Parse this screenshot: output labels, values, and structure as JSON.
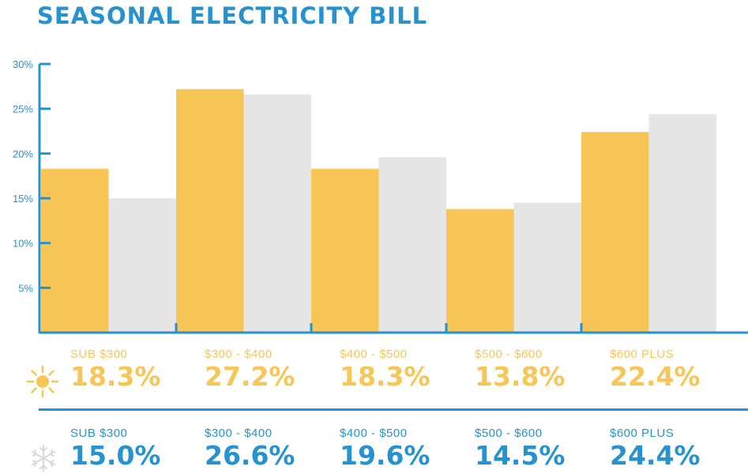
{
  "title": "SEASONAL ELECTRICITY BILL",
  "colors": {
    "summer": "#f7c656",
    "winter": "#e6e6e6",
    "accent": "#2692d0"
  },
  "icons": {
    "summer": "sun-icon",
    "winter": "snowflake-icon"
  },
  "chart_data": {
    "type": "bar",
    "title": "SEASONAL ELECTRICITY BILL",
    "categories": [
      "SUB $300",
      "$300 - $400",
      "$400 - $500",
      "$500 - $600",
      "$600 PLUS"
    ],
    "series": [
      {
        "name": "Summer",
        "values": [
          18.3,
          27.2,
          18.3,
          13.8,
          22.4
        ],
        "color": "#f7c656"
      },
      {
        "name": "Winter",
        "values": [
          15.0,
          26.6,
          19.6,
          14.5,
          24.4
        ],
        "color": "#e6e6e6"
      }
    ],
    "ylim": [
      0,
      30
    ],
    "yticks": [
      5,
      10,
      15,
      20,
      25,
      30
    ],
    "ytick_labels": [
      "5%",
      "10%",
      "15%",
      "20%",
      "25%",
      "30%"
    ],
    "xlabel": "",
    "ylabel": "",
    "grid": false,
    "legend": "none"
  },
  "summer_row": {
    "items": [
      {
        "label": "SUB $300",
        "value": "18.3%"
      },
      {
        "label": "$300 - $400",
        "value": "27.2%"
      },
      {
        "label": "$400 - $500",
        "value": "18.3%"
      },
      {
        "label": "$500 - $600",
        "value": "13.8%"
      },
      {
        "label": "$600 PLUS",
        "value": "22.4%"
      }
    ]
  },
  "winter_row": {
    "items": [
      {
        "label": "SUB $300",
        "value": "15.0%"
      },
      {
        "label": "$300 - $400",
        "value": "26.6%"
      },
      {
        "label": "$400 - $500",
        "value": "19.6%"
      },
      {
        "label": "$500 - $600",
        "value": "14.5%"
      },
      {
        "label": "$600 PLUS",
        "value": "24.4%"
      }
    ]
  }
}
